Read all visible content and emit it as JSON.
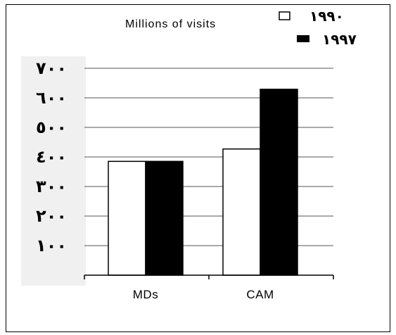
{
  "chart_data": {
    "type": "bar",
    "title": "Millions of visits",
    "categories": [
      "MDs",
      "CAM"
    ],
    "series": [
      {
        "name": "١٩٩٠",
        "values": [
          385,
          427
        ],
        "color": "#ffffff"
      },
      {
        "name": "١٩٩٧",
        "values": [
          385,
          629
        ],
        "color": "#000000"
      }
    ],
    "y_ticks": [
      {
        "value": 100,
        "label": "١٠٠"
      },
      {
        "value": 200,
        "label": "٢٠٠"
      },
      {
        "value": 300,
        "label": "٣٠٠"
      },
      {
        "value": 400,
        "label": "٤٠٠"
      },
      {
        "value": 500,
        "label": "٥٠٠"
      },
      {
        "value": 600,
        "label": "٦٠٠"
      },
      {
        "value": 700,
        "label": "٧٠٠"
      }
    ],
    "ylim": [
      0,
      700
    ],
    "grid": true,
    "legend_position": "top-right"
  }
}
